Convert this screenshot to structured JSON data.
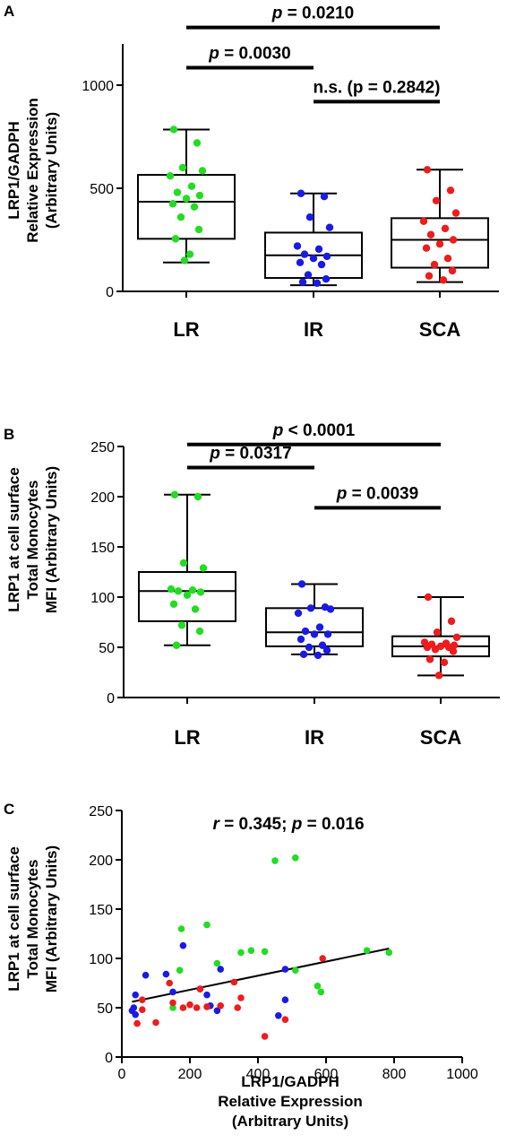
{
  "colors": {
    "LR": "#22dd22",
    "IR": "#1a1ae6",
    "SCA": "#ee1c1c",
    "ink": "#000000"
  },
  "chart_data": [
    {
      "panel": "A",
      "type": "box",
      "ylabel": [
        "LRP1/GADPH",
        "Relative Expression",
        "(Arbitrary Units)"
      ],
      "categories": [
        "LR",
        "IR",
        "SCA"
      ],
      "ylim": [
        0,
        1200
      ],
      "yticks": [
        0,
        500,
        1000
      ],
      "boxes": [
        {
          "name": "LR",
          "min": 140,
          "q1": 255,
          "median": 435,
          "q3": 565,
          "max": 785
        },
        {
          "name": "IR",
          "min": 30,
          "q1": 65,
          "median": 175,
          "q3": 285,
          "max": 475
        },
        {
          "name": "SCA",
          "min": 45,
          "q1": 115,
          "median": 250,
          "q3": 355,
          "max": 590
        }
      ],
      "points": [
        {
          "name": "LR",
          "values": [
            785,
            720,
            600,
            585,
            560,
            510,
            480,
            465,
            450,
            425,
            410,
            360,
            300,
            255,
            180,
            150
          ]
        },
        {
          "name": "IR",
          "values": [
            475,
            460,
            360,
            310,
            220,
            205,
            180,
            170,
            160,
            140,
            130,
            80,
            60,
            45,
            40
          ]
        },
        {
          "name": "SCA",
          "values": [
            590,
            490,
            440,
            380,
            340,
            305,
            275,
            250,
            230,
            210,
            160,
            130,
            100,
            75,
            55
          ]
        }
      ],
      "significance": [
        {
          "label_p": "p",
          "label_rest": " = 0.0210",
          "from": "LR",
          "to": "SCA",
          "value": 1280
        },
        {
          "label_p": "p",
          "label_rest": " = 0.0030",
          "from": "LR",
          "to": "IR",
          "value": 1085
        },
        {
          "label_p": "n.s. (",
          "label_rest": "p = 0.2842)",
          "from": "IR",
          "to": "SCA",
          "value": 920
        }
      ]
    },
    {
      "panel": "B",
      "type": "box",
      "ylabel": [
        "LRP1 at cell surface",
        "Total Monocytes",
        "MFI (Arbitrary Units)"
      ],
      "categories": [
        "LR",
        "IR",
        "SCA"
      ],
      "ylim": [
        0,
        250
      ],
      "yticks": [
        0,
        50,
        100,
        150,
        200,
        250
      ],
      "boxes": [
        {
          "name": "LR",
          "min": 52,
          "q1": 76,
          "median": 106,
          "q3": 125,
          "max": 202
        },
        {
          "name": "IR",
          "min": 43,
          "q1": 51,
          "median": 65,
          "q3": 89,
          "max": 113
        },
        {
          "name": "SCA",
          "min": 22,
          "q1": 41,
          "median": 51,
          "q3": 61,
          "max": 100
        }
      ],
      "points": [
        {
          "name": "LR",
          "values": [
            202,
            200,
            134,
            129,
            108,
            107,
            106,
            105,
            102,
            93,
            88,
            72,
            66,
            52
          ]
        },
        {
          "name": "IR",
          "values": [
            113,
            90,
            89,
            88,
            84,
            70,
            66,
            63,
            63,
            58,
            52,
            50,
            47,
            43,
            42
          ]
        },
        {
          "name": "SCA",
          "values": [
            100,
            76,
            65,
            60,
            55,
            54,
            53,
            52,
            51,
            50,
            50,
            48,
            46,
            38,
            35,
            22
          ]
        }
      ],
      "significance": [
        {
          "label_p": "p",
          "label_rest": " < 0.0001",
          "from": "LR",
          "to": "SCA",
          "value": 252
        },
        {
          "label_p": "p",
          "label_rest": " = 0.0317",
          "from": "LR",
          "to": "IR",
          "value": 229
        },
        {
          "label_p": "p",
          "label_rest": " = 0.0039",
          "from": "IR",
          "to": "SCA",
          "value": 189
        }
      ]
    },
    {
      "panel": "C",
      "type": "scatter",
      "ylabel": [
        "LRP1 at cell surface",
        "Total Monocytes",
        "MFI (Arbitrary Units)"
      ],
      "xlabel": [
        "LRP1/GADPH",
        "Relative Expression",
        "(Arbitrary Units)"
      ],
      "xlim": [
        0,
        1000
      ],
      "ylim": [
        0,
        250
      ],
      "xticks": [
        0,
        200,
        400,
        600,
        800,
        1000
      ],
      "yticks": [
        0,
        50,
        100,
        150,
        200,
        250
      ],
      "annotation": {
        "r_label": "r",
        "r_rest": " = 0.345;  ",
        "p_label": "p",
        "p_rest": " = 0.016"
      },
      "fit_line": {
        "x": [
          30,
          785
        ],
        "y": [
          56,
          110
        ]
      },
      "series": [
        {
          "name": "LR",
          "points": [
            [
              510,
              202
            ],
            [
              450,
              199
            ],
            [
              250,
              134
            ],
            [
              175,
              130
            ],
            [
              280,
              95
            ],
            [
              350,
              106
            ],
            [
              380,
              108
            ],
            [
              420,
              107
            ],
            [
              720,
              108
            ],
            [
              785,
              106
            ],
            [
              510,
              88
            ],
            [
              170,
              88
            ],
            [
              575,
              72
            ],
            [
              585,
              66
            ],
            [
              150,
              50
            ]
          ]
        },
        {
          "name": "IR",
          "points": [
            [
              180,
              113
            ],
            [
              480,
              89
            ],
            [
              290,
              89
            ],
            [
              130,
              84
            ],
            [
              70,
              83
            ],
            [
              230,
              69
            ],
            [
              150,
              66
            ],
            [
              250,
              63
            ],
            [
              40,
              63
            ],
            [
              480,
              58
            ],
            [
              260,
              52
            ],
            [
              35,
              50
            ],
            [
              30,
              47
            ],
            [
              280,
              47
            ],
            [
              460,
              42
            ],
            [
              40,
              43
            ]
          ]
        },
        {
          "name": "SCA",
          "points": [
            [
              590,
              100
            ],
            [
              140,
              75
            ],
            [
              330,
              76
            ],
            [
              230,
              69
            ],
            [
              350,
              60
            ],
            [
              60,
              58
            ],
            [
              150,
              55
            ],
            [
              200,
              53
            ],
            [
              290,
              52
            ],
            [
              250,
              51
            ],
            [
              180,
              50
            ],
            [
              220,
              50
            ],
            [
              60,
              48
            ],
            [
              340,
              50
            ],
            [
              480,
              38
            ],
            [
              45,
              34
            ],
            [
              100,
              35
            ],
            [
              420,
              21
            ]
          ]
        }
      ]
    }
  ]
}
